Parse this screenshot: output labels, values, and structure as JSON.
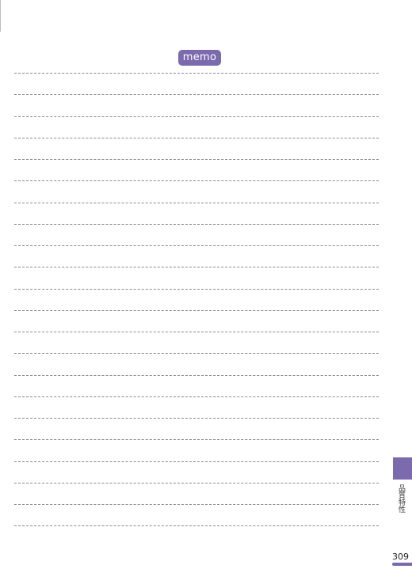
{
  "header": {
    "badge_label": "memo"
  },
  "memo_lines": {
    "count": 22
  },
  "side_tab": {
    "label": "品質特性"
  },
  "footer": {
    "page_number": "309"
  },
  "colors": {
    "accent": "#7b6aae",
    "rule": "#8a8a8a",
    "background": "#ffffff"
  }
}
